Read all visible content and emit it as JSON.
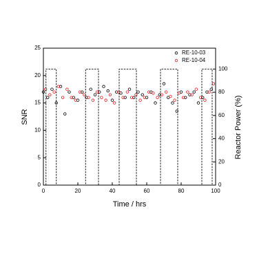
{
  "chart_data": {
    "type": "scatter",
    "xlabel": "Time / hrs",
    "ylabel": "SNR",
    "y2label": "Reactor Power (%)",
    "xlim": [
      0,
      100
    ],
    "xticks": [
      0,
      20,
      40,
      60,
      80,
      100
    ],
    "ylim": [
      0,
      25
    ],
    "yticks": [
      0,
      5,
      10,
      15,
      20,
      25
    ],
    "y2lim": [
      0,
      118
    ],
    "y2ticks": [
      0,
      20,
      40,
      60,
      80,
      100
    ],
    "legend": "upper-right",
    "series": [
      {
        "name": "RE-10-03",
        "color": "#000000",
        "x": [
          0,
          2.5,
          5,
          7.5,
          10,
          12.5,
          15,
          17.5,
          20,
          22.5,
          25,
          27.5,
          30,
          32.5,
          35,
          37.5,
          40,
          42.5,
          45,
          47.5,
          50,
          52.5,
          55,
          57.5,
          60,
          62.5,
          65,
          67.5,
          70,
          72.5,
          75,
          77.5,
          80,
          82.5,
          85,
          87.5,
          90,
          92.5,
          95,
          97.5
        ],
        "values": [
          17,
          16,
          17.5,
          15,
          18,
          13,
          17,
          16,
          15.5,
          17,
          16,
          17.5,
          16.5,
          17,
          18,
          17.2,
          15.5,
          17,
          16.8,
          16,
          17.5,
          16,
          17,
          16.5,
          16,
          17,
          15,
          16.5,
          18.5,
          16,
          15,
          13.5,
          17,
          16,
          16.5,
          17,
          15,
          16,
          17,
          17.5
        ]
      },
      {
        "name": "RE-10-04",
        "color": "#e8191c",
        "x": [
          1.25,
          3.75,
          6.25,
          8.75,
          11.25,
          13.75,
          16.25,
          18.75,
          21.25,
          23.75,
          26.25,
          28.75,
          31.25,
          33.75,
          36.25,
          38.75,
          41.25,
          43.75,
          46.25,
          48.75,
          51.25,
          53.75,
          56.25,
          58.75,
          61.25,
          63.75,
          66.25,
          68.75,
          71.25,
          73.75,
          76.25,
          78.75,
          81.25,
          83.75,
          86.25,
          88.75,
          91.25,
          93.75,
          96.25,
          98.75
        ],
        "values": [
          17.5,
          16.5,
          17,
          18,
          16,
          17.5,
          16,
          15.5,
          17,
          16.5,
          16,
          15.5,
          17,
          16,
          15.5,
          16.5,
          15,
          17,
          16,
          17,
          16,
          16.5,
          15.5,
          16,
          17,
          16.8,
          16,
          16.5,
          17,
          16.2,
          15.5,
          16.8,
          16,
          17,
          16.5,
          17.5,
          16,
          15.5,
          17,
          18.5
        ]
      },
      {
        "axis": "y2",
        "color": "#000000",
        "line": "dashed",
        "x": [
          0,
          1.5,
          1.5,
          7.5,
          7.5,
          24.5,
          24.5,
          32,
          32,
          44,
          44,
          54,
          54,
          68,
          68,
          78,
          78,
          92,
          92,
          98,
          98,
          100
        ],
        "values": [
          0,
          0,
          100,
          100,
          0,
          0,
          100,
          100,
          0,
          0,
          100,
          100,
          0,
          0,
          100,
          100,
          0,
          0,
          100,
          100,
          0,
          0
        ]
      }
    ]
  }
}
